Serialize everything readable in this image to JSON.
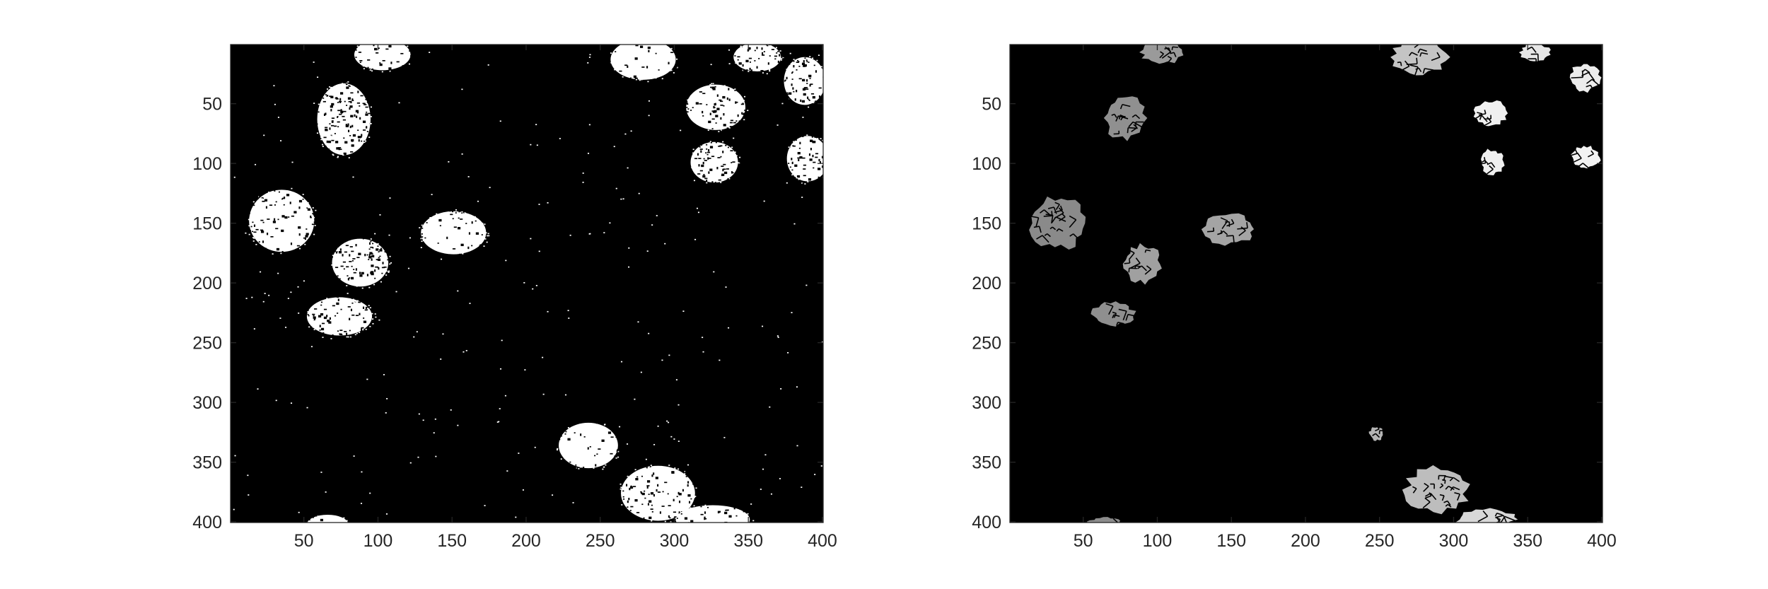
{
  "figure": {
    "background": "#ffffff",
    "axis_color": "#262626",
    "image_background": "#000000"
  },
  "panels": [
    {
      "name": "binary-mask",
      "description_colors": {
        "foreground": "#ffffff",
        "background": "#000000"
      },
      "xlim": [
        1,
        400
      ],
      "ylim": [
        1,
        400
      ],
      "y_reversed": true,
      "x_ticks": [
        "50",
        "100",
        "150",
        "200",
        "250",
        "300",
        "350",
        "400"
      ],
      "y_ticks": [
        "50",
        "100",
        "150",
        "200",
        "250",
        "300",
        "350",
        "400"
      ],
      "blobs": [
        {
          "cx": 103,
          "cy": 9,
          "rx": 19,
          "ry": 13,
          "density": 0.92
        },
        {
          "cx": 279,
          "cy": 13,
          "rx": 22,
          "ry": 17,
          "density": 0.95
        },
        {
          "cx": 356,
          "cy": 11,
          "rx": 16,
          "ry": 12,
          "density": 0.82
        },
        {
          "cx": 388,
          "cy": 31,
          "rx": 14,
          "ry": 20,
          "density": 0.8
        },
        {
          "cx": 77,
          "cy": 63,
          "rx": 18,
          "ry": 30,
          "density": 0.78
        },
        {
          "cx": 328,
          "cy": 53,
          "rx": 20,
          "ry": 19,
          "density": 0.85
        },
        {
          "cx": 327,
          "cy": 99,
          "rx": 16,
          "ry": 17,
          "density": 0.8
        },
        {
          "cx": 390,
          "cy": 96,
          "rx": 14,
          "ry": 19,
          "density": 0.82
        },
        {
          "cx": 35,
          "cy": 148,
          "rx": 22,
          "ry": 26,
          "density": 0.9
        },
        {
          "cx": 151,
          "cy": 158,
          "rx": 22,
          "ry": 18,
          "density": 0.94
        },
        {
          "cx": 88,
          "cy": 183,
          "rx": 19,
          "ry": 20,
          "density": 0.8
        },
        {
          "cx": 74,
          "cy": 228,
          "rx": 22,
          "ry": 16,
          "density": 0.85
        },
        {
          "cx": 242,
          "cy": 336,
          "rx": 20,
          "ry": 19,
          "density": 0.96
        },
        {
          "cx": 289,
          "cy": 376,
          "rx": 25,
          "ry": 23,
          "density": 0.88
        },
        {
          "cx": 326,
          "cy": 398,
          "rx": 25,
          "ry": 12,
          "density": 0.92
        },
        {
          "cx": 66,
          "cy": 402,
          "rx": 14,
          "ry": 8,
          "density": 0.95
        }
      ],
      "noise_count": 260
    },
    {
      "name": "segmented-regions",
      "description_colors": {
        "fill_dark": "#8c8c8c",
        "fill_light": "#c8c8c8",
        "background": "#000000",
        "border": "#000000"
      },
      "xlim": [
        1,
        400
      ],
      "ylim": [
        1,
        400
      ],
      "y_reversed": true,
      "x_ticks": [
        "50",
        "100",
        "150",
        "200",
        "250",
        "300",
        "350",
        "400"
      ],
      "y_ticks": [
        "50",
        "100",
        "150",
        "200",
        "250",
        "300",
        "350",
        "400"
      ],
      "regions": [
        {
          "cx": 103,
          "cy": 7,
          "rx": 14,
          "ry": 10,
          "shade": "#9a9a9a"
        },
        {
          "cx": 277,
          "cy": 11,
          "rx": 19,
          "ry": 15,
          "shade": "#c4c4c4"
        },
        {
          "cx": 355,
          "cy": 7,
          "rx": 10,
          "ry": 8,
          "shade": "#e6e6e6"
        },
        {
          "cx": 389,
          "cy": 28,
          "rx": 11,
          "ry": 12,
          "shade": "#ececec"
        },
        {
          "cx": 78,
          "cy": 62,
          "rx": 14,
          "ry": 19,
          "shade": "#909090"
        },
        {
          "cx": 325,
          "cy": 58,
          "rx": 11,
          "ry": 11,
          "shade": "#f0f0f0"
        },
        {
          "cx": 326,
          "cy": 99,
          "rx": 8,
          "ry": 11,
          "shade": "#f0f0f0"
        },
        {
          "cx": 389,
          "cy": 95,
          "rx": 10,
          "ry": 10,
          "shade": "#f2f2f2"
        },
        {
          "cx": 33,
          "cy": 150,
          "rx": 19,
          "ry": 22,
          "shade": "#8a8a8a"
        },
        {
          "cx": 148,
          "cy": 155,
          "rx": 18,
          "ry": 13,
          "shade": "#a4a4a4"
        },
        {
          "cx": 90,
          "cy": 184,
          "rx": 13,
          "ry": 16,
          "shade": "#a0a0a0"
        },
        {
          "cx": 70,
          "cy": 226,
          "rx": 15,
          "ry": 10,
          "shade": "#8f8f8f"
        },
        {
          "cx": 248,
          "cy": 326,
          "rx": 5,
          "ry": 6,
          "shade": "#b4b4b4"
        },
        {
          "cx": 289,
          "cy": 373,
          "rx": 22,
          "ry": 19,
          "shade": "#bdbdbd"
        },
        {
          "cx": 322,
          "cy": 398,
          "rx": 20,
          "ry": 9,
          "shade": "#d8d8d8"
        },
        {
          "cx": 65,
          "cy": 401,
          "rx": 12,
          "ry": 5,
          "shade": "#8c8c8c"
        }
      ]
    }
  ]
}
